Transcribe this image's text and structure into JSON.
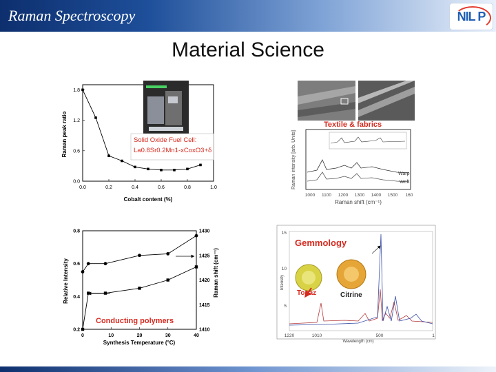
{
  "header": {
    "title": "Raman Spectroscopy",
    "logo_text": "NIL P"
  },
  "slide_title": "Material Science",
  "panels": {
    "sofc": {
      "inset_lines": [
        "Solid Oxide Fuel Cell:",
        "La0.8Sr0.2Mn1-xCoxO3+δ"
      ],
      "inset_photo": "fuel-cell-photo",
      "chart_data": {
        "type": "line",
        "x": [
          0.0,
          0.1,
          0.2,
          0.3,
          0.4,
          0.5,
          0.6,
          0.7,
          0.8,
          0.9
        ],
        "y": [
          1.8,
          1.25,
          0.5,
          0.4,
          0.28,
          0.24,
          0.22,
          0.22,
          0.24,
          0.32
        ],
        "xlabel": "Cobalt content (%)",
        "ylabel": "Raman peak ratio",
        "xticks": [
          "0.0",
          "0.2",
          "0.4",
          "0.6",
          "0.8",
          "1.0"
        ],
        "yticks": [
          "0.0",
          "0.6",
          "1.2",
          "1.8"
        ],
        "xlim": [
          0,
          1.0
        ],
        "ylim": [
          0,
          1.9
        ]
      }
    },
    "textile": {
      "label": "Textile & fabrics",
      "xlabel": "Raman shift (cm⁻¹)",
      "ylabel": "Raman intensity [arb. Units]",
      "xticks": [
        "1000",
        "1100",
        "1200",
        "1300",
        "1400",
        "1500",
        "160"
      ],
      "series": [
        {
          "name": "Warp"
        },
        {
          "name": "Weft"
        }
      ]
    },
    "polymers": {
      "label": "Conducting polymers",
      "chart_data": {
        "type": "line",
        "x": [
          0,
          2,
          8,
          20,
          30,
          40
        ],
        "series": [
          {
            "values": [
              0.2,
              0.42,
              0.42,
              0.45,
              0.5,
              0.58
            ],
            "axis": "left"
          },
          {
            "values": [
              0.55,
              0.6,
              0.6,
              0.65,
              0.66,
              0.77
            ],
            "axis": "left"
          }
        ],
        "xlabel": "Synthesis Temperature (°C)",
        "ylabel_left": "Relative Intensity",
        "ylabel_right": "Raman shift (cm⁻¹)",
        "xticks": [
          "0",
          "10",
          "20",
          "30",
          "40"
        ],
        "yticks_left": [
          "0.2",
          "0.4",
          "0.6",
          "0.8"
        ],
        "yticks_right": [
          "1410",
          "1415",
          "1420",
          "1425",
          "1430"
        ],
        "xlim": [
          0,
          40
        ],
        "ylim": [
          0.2,
          0.8
        ]
      }
    },
    "gem": {
      "label": "Gemmology",
      "gems": [
        "Topaz",
        "Citrine"
      ],
      "yticks": [
        "15",
        "10",
        "5"
      ],
      "xticks": [
        "1220",
        "1010",
        "500",
        "1"
      ],
      "xlabel": "Wavelength (cm)",
      "ylabel": "Intensity"
    }
  }
}
